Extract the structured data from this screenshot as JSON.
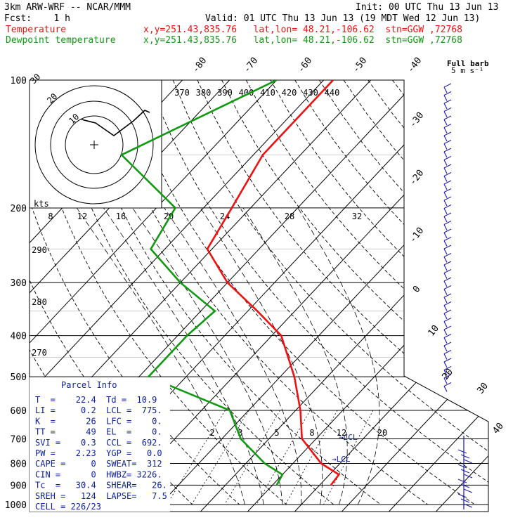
{
  "header": {
    "model": "3km ARW-WRF -- NCAR/MMM",
    "init": "Init: 00 UTC Thu 13 Jun 13",
    "fcst": "Fcst:    1 h",
    "valid": "Valid: 01 UTC Thu 13 Jun 13 (19 MDT Wed 12 Jun 13)",
    "temp_label": "Temperature",
    "dew_label": "Dewpoint temperature",
    "coords_line": "x,y=251.43,835.76   lat,lon= 48.21,-106.62  stn=GGW ,72768",
    "full_barb_line1": "Full barb",
    "full_barb_line2": "5 m s⁻¹"
  },
  "colors": {
    "temperature": "#ee1111",
    "dewpoint": "#119911",
    "parcel": "#0b1fa0",
    "wind": "#2323b4",
    "grid": "#000000"
  },
  "chart_data": {
    "type": "skew-T log-p sounding",
    "pressure_axis_labels": [
      "100",
      "200",
      "300",
      "400",
      "500",
      "600",
      "700",
      "800",
      "900",
      "1000"
    ],
    "isotherm_labels": [
      "-80",
      "-70",
      "-60",
      "-50",
      "-40",
      "-30",
      "-20",
      "-10",
      "0",
      "10",
      "20",
      "30",
      "40"
    ],
    "theta_labels_top": [
      "370",
      "380",
      "390",
      "400",
      "410",
      "420",
      "430",
      "440"
    ],
    "theta_labels_left": [
      "290",
      "280",
      "270"
    ],
    "mixing_ratio_labels": [
      "2",
      "3",
      "5",
      "8",
      "12",
      "20"
    ],
    "hodograph": {
      "speed_unit": "kts",
      "ring_labels": [
        "30",
        "20",
        "10"
      ],
      "speed_ticks": [
        "8",
        "12",
        "16",
        "20",
        "24",
        "28",
        "32"
      ]
    },
    "temperature": [
      [
        100,
        -58
      ],
      [
        150,
        -58
      ],
      [
        200,
        -54
      ],
      [
        250,
        -51
      ],
      [
        300,
        -40
      ],
      [
        350,
        -28
      ],
      [
        400,
        -18
      ],
      [
        500,
        -7
      ],
      [
        600,
        1
      ],
      [
        700,
        7
      ],
      [
        800,
        16
      ],
      [
        850,
        22
      ],
      [
        900,
        22.4
      ]
    ],
    "dewpoint": [
      [
        100,
        -70
      ],
      [
        150,
        -88
      ],
      [
        200,
        -66
      ],
      [
        250,
        -63
      ],
      [
        300,
        -50
      ],
      [
        350,
        -37
      ],
      [
        400,
        -38
      ],
      [
        500,
        -38
      ],
      [
        600,
        -14
      ],
      [
        700,
        -6
      ],
      [
        800,
        4
      ],
      [
        850,
        10
      ],
      [
        900,
        10.9
      ]
    ],
    "markers": [
      "CCL",
      "LCL"
    ]
  },
  "parcel_info": {
    "title": "Parcel Info",
    "rows": [
      "T  =    22.4  Td =  10.9",
      "LI =     0.2  LCL =  775.",
      "K  =      26  LFC =    0.",
      "TT =      49  EL  =    0.",
      "SVI =    0.3  CCL =  692.",
      "PW =    2.23  YGP =   0.0",
      "CAPE =     0  SWEAT=  312",
      "CIN =      0  HWBZ= 3226.",
      "Tc  =   30.4  SHEAR=   26.",
      "SREH =   124  LAPSE=   7.5",
      "CELL = 226/23"
    ]
  }
}
